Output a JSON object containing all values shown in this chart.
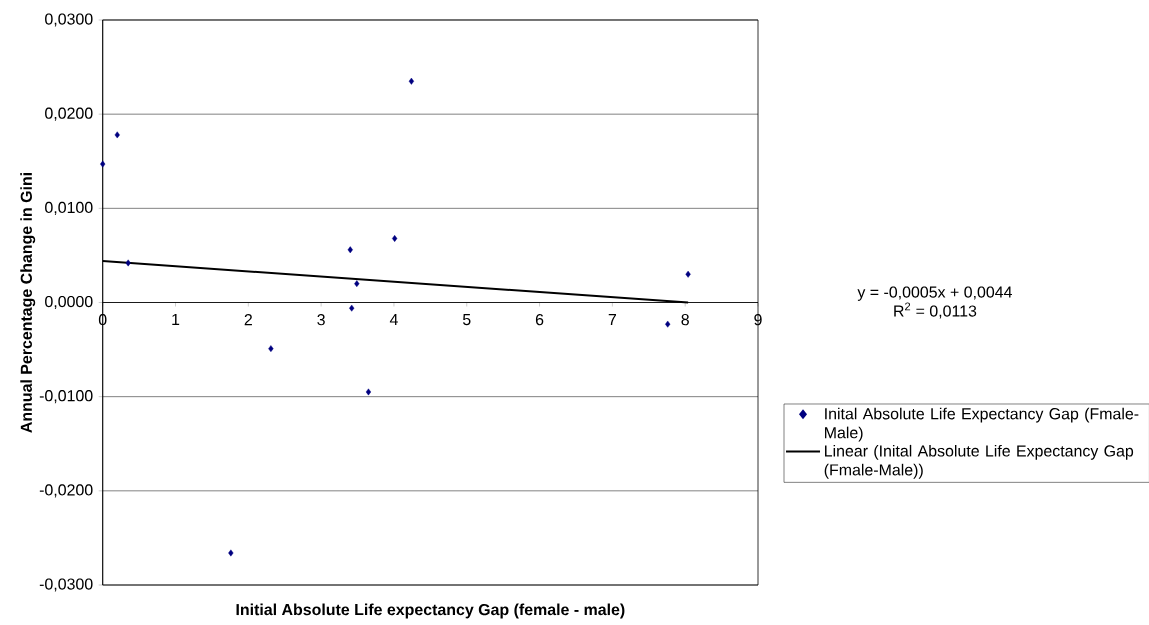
{
  "chart_data": {
    "type": "scatter",
    "xlabel": "Initial Absolute Life expectancy Gap (female - male)",
    "ylabel": "Annual Percentage Change in Gini",
    "x": [
      0,
      0.2,
      0.35,
      1.76,
      2.31,
      3.4,
      3.42,
      3.49,
      3.65,
      4.01,
      4.24,
      7.76,
      8.04
    ],
    "series": [
      {
        "name": "Inital Absolute Life Expectancy Gap (Fmale-Male)",
        "color": "#000080",
        "marker": "diamond",
        "values": [
          0.0147,
          0.0178,
          0.0042,
          -0.0266,
          -0.0049,
          0.0056,
          -0.0006,
          0.002,
          -0.0095,
          0.0068,
          0.0235,
          -0.0023,
          0.003
        ]
      },
      {
        "name": "Linear (Inital Absolute Life Expectancy Gap (Fmale-Male))",
        "type": "line",
        "color": "#000000",
        "marker": "none",
        "line_style": "solid",
        "x": [
          0,
          8.04
        ],
        "values": [
          0.0044,
          0.0
        ]
      }
    ],
    "xlim": [
      0,
      9
    ],
    "xticks": [
      0,
      1,
      2,
      3,
      4,
      5,
      6,
      7,
      8,
      9
    ],
    "ylim": [
      -0.03,
      0.03
    ],
    "yticks": [
      {
        "value": -0.03,
        "label": "-0,0300"
      },
      {
        "value": -0.02,
        "label": "-0,0200"
      },
      {
        "value": -0.01,
        "label": "-0,0100"
      },
      {
        "value": 0,
        "label": "0,0000"
      },
      {
        "value": 0.01,
        "label": "0,0100"
      },
      {
        "value": 0.02,
        "label": "0,0200"
      },
      {
        "value": 0.03,
        "label": "0,0300"
      }
    ],
    "grid": "y",
    "legend": "right",
    "annotations": [
      "y = -0,0005x + 0,0044",
      "R$^{2}$ = 0,0113"
    ]
  }
}
